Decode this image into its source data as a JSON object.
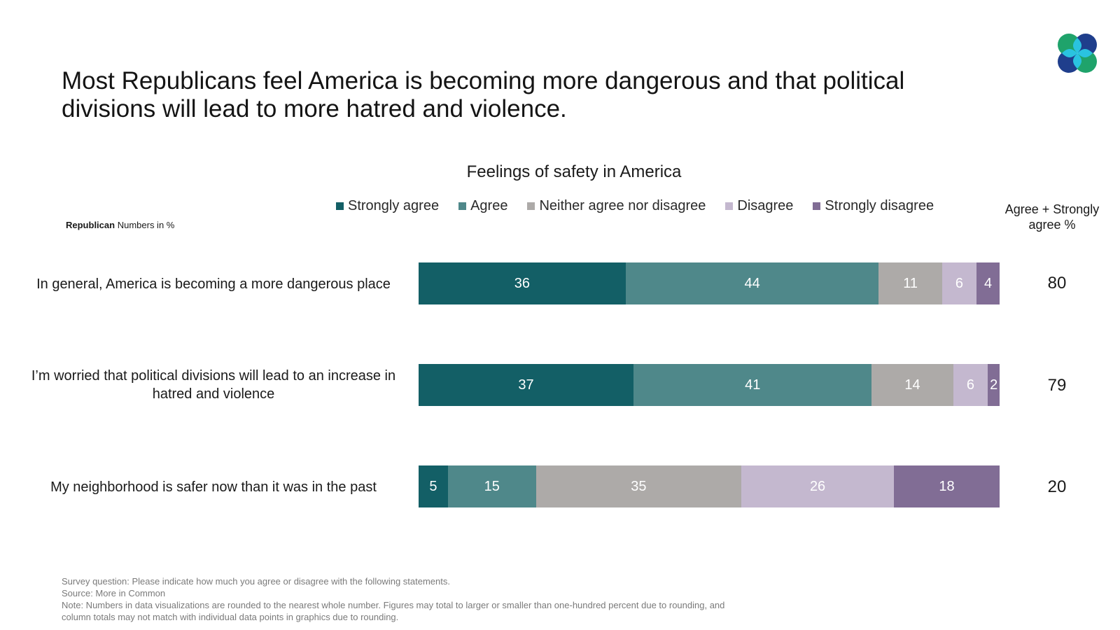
{
  "headline": "Most Republicans feel America is becoming more dangerous and that political divisions will lead to more hatred and violence.",
  "logo_icon": "four-leaf-logo-icon",
  "colors": {
    "strongly_agree": "#135f66",
    "agree": "#4f888a",
    "neither": "#adaaa8",
    "disagree": "#c4b8cf",
    "strongly_disagree": "#816d95"
  },
  "subset": {
    "group": "Republican",
    "unit": "Numbers in %"
  },
  "total_header": "Agree + Strongly agree %",
  "chart_data": {
    "type": "bar",
    "orientation": "horizontal",
    "stacked": true,
    "title": "Feelings of safety in America",
    "xlim": [
      0,
      100
    ],
    "legend_position": "top",
    "categories": [
      "In general, America is becoming a more dangerous place",
      "I’m worried that political divisions will lead to an increase in hatred and violence",
      "My neighborhood is safer now than it was in the past"
    ],
    "series": [
      {
        "name": "Strongly agree",
        "color": "#135f66",
        "values": [
          36,
          37,
          5
        ]
      },
      {
        "name": "Agree",
        "color": "#4f888a",
        "values": [
          44,
          41,
          15
        ]
      },
      {
        "name": "Neither agree nor disagree",
        "color": "#adaaa8",
        "values": [
          11,
          14,
          35
        ]
      },
      {
        "name": "Disagree",
        "color": "#c4b8cf",
        "values": [
          6,
          6,
          26
        ]
      },
      {
        "name": "Strongly disagree",
        "color": "#816d95",
        "values": [
          4,
          2,
          18
        ]
      }
    ],
    "agree_totals": [
      80,
      79,
      20
    ]
  },
  "footer": {
    "question": "Survey question: Please indicate how much you agree or disagree with the following statements.",
    "source": "Source: More in Common",
    "note": "Note: Numbers in data visualizations are rounded to the nearest whole number. Figures may total to larger or smaller than one-hundred percent due to rounding, and column totals may not match with individual data points in graphics due to rounding."
  }
}
